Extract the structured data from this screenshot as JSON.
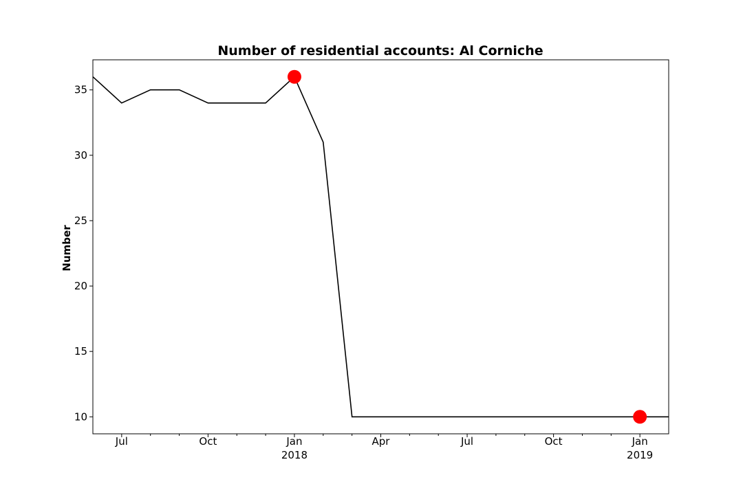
{
  "chart_data": {
    "type": "line",
    "title": "Number of residential accounts: Al Corniche",
    "xlabel": "",
    "ylabel": "Number",
    "x": [
      "2017-06",
      "2017-07",
      "2017-08",
      "2017-09",
      "2017-10",
      "2017-11",
      "2017-12",
      "2018-01",
      "2018-02",
      "2018-03",
      "2018-04",
      "2018-05",
      "2018-06",
      "2018-07",
      "2018-08",
      "2018-09",
      "2018-10",
      "2018-11",
      "2018-12",
      "2019-01",
      "2019-02"
    ],
    "series": [
      {
        "values": [
          36,
          34,
          35,
          35,
          34,
          34,
          34,
          36,
          31,
          10,
          10,
          10,
          10,
          10,
          10,
          10,
          10,
          10,
          10,
          10,
          10
        ],
        "color": "#000000"
      }
    ],
    "highlights": [
      {
        "x": "2018-01",
        "y": 36,
        "color": "#ff0000"
      },
      {
        "x": "2019-01",
        "y": 10,
        "color": "#ff0000"
      }
    ],
    "xlim": [
      "2017-06",
      "2019-02"
    ],
    "ylim": [
      8.7,
      37.3
    ],
    "y_ticks": [
      10,
      15,
      20,
      25,
      30,
      35
    ],
    "x_ticks": [
      {
        "x": "2017-07",
        "label": "Jul",
        "sublabel": ""
      },
      {
        "x": "2017-10",
        "label": "Oct",
        "sublabel": ""
      },
      {
        "x": "2018-01",
        "label": "Jan",
        "sublabel": "2018"
      },
      {
        "x": "2018-04",
        "label": "Apr",
        "sublabel": ""
      },
      {
        "x": "2018-07",
        "label": "Jul",
        "sublabel": ""
      },
      {
        "x": "2018-10",
        "label": "Oct",
        "sublabel": ""
      },
      {
        "x": "2019-01",
        "label": "Jan",
        "sublabel": "2019"
      }
    ],
    "x_minor_ticks": [
      "2017-08",
      "2017-09",
      "2017-11",
      "2017-12",
      "2018-02",
      "2018-03",
      "2018-05",
      "2018-06",
      "2018-08",
      "2018-09",
      "2018-11",
      "2018-12"
    ],
    "grid": false,
    "legend": "none"
  }
}
